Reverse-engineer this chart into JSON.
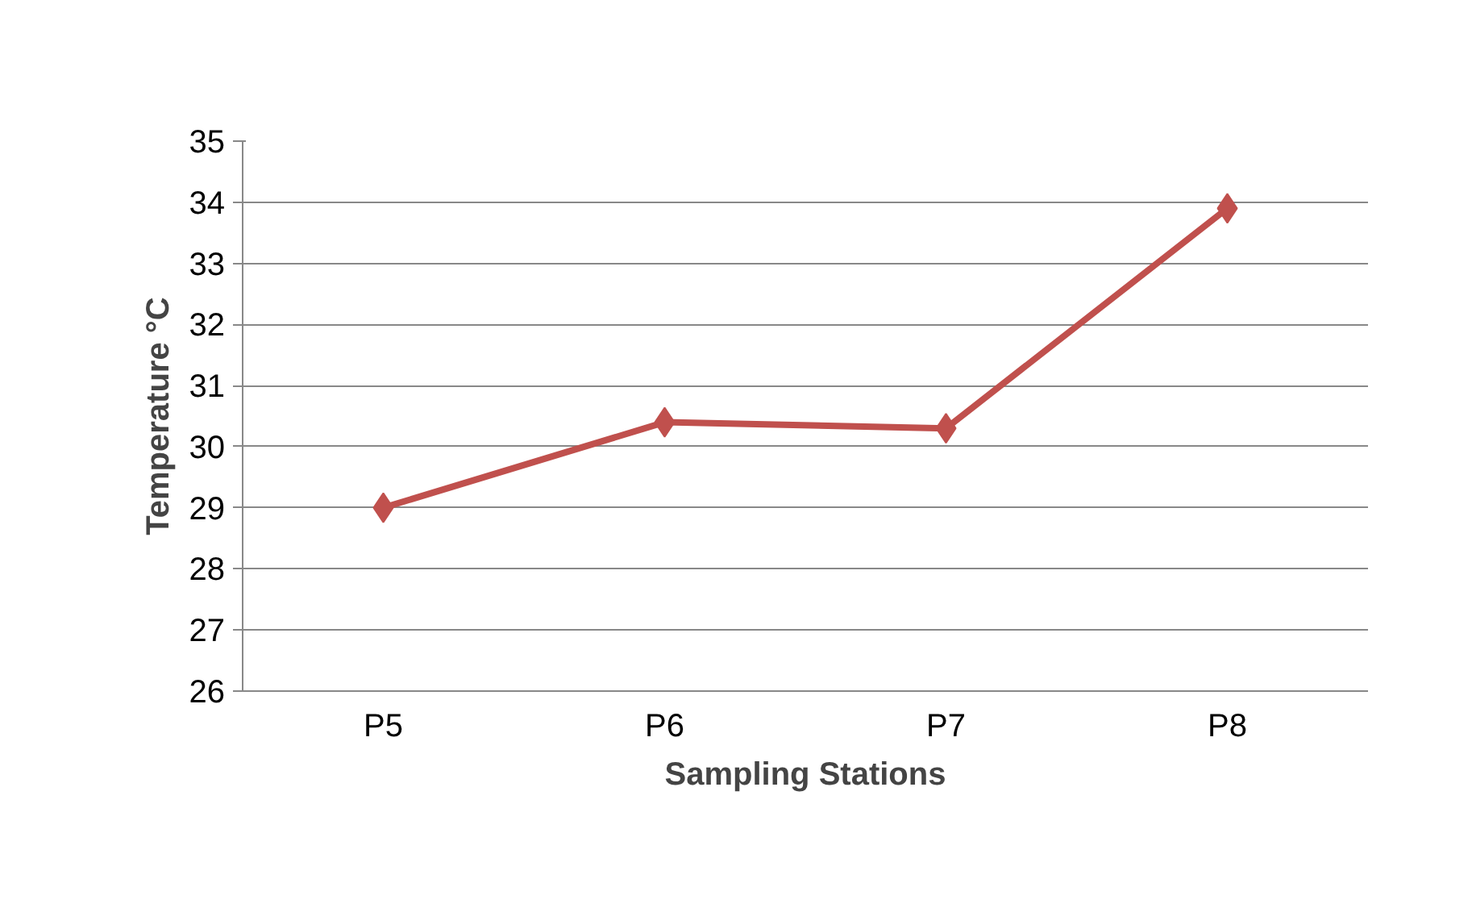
{
  "chart_data": {
    "type": "line",
    "xlabel": "Sampling Stations",
    "ylabel": "Temperature °C",
    "categories": [
      "P5",
      "P6",
      "P7",
      "P8"
    ],
    "series": [
      {
        "color": "#c0504d",
        "values": [
          29.0,
          30.4,
          30.3,
          33.9
        ]
      }
    ],
    "ylim": [
      26,
      35
    ],
    "yticks": [
      26,
      27,
      28,
      29,
      30,
      31,
      32,
      33,
      34,
      35
    ],
    "grid": "y",
    "marker": "diamond",
    "line_style": "solid"
  }
}
